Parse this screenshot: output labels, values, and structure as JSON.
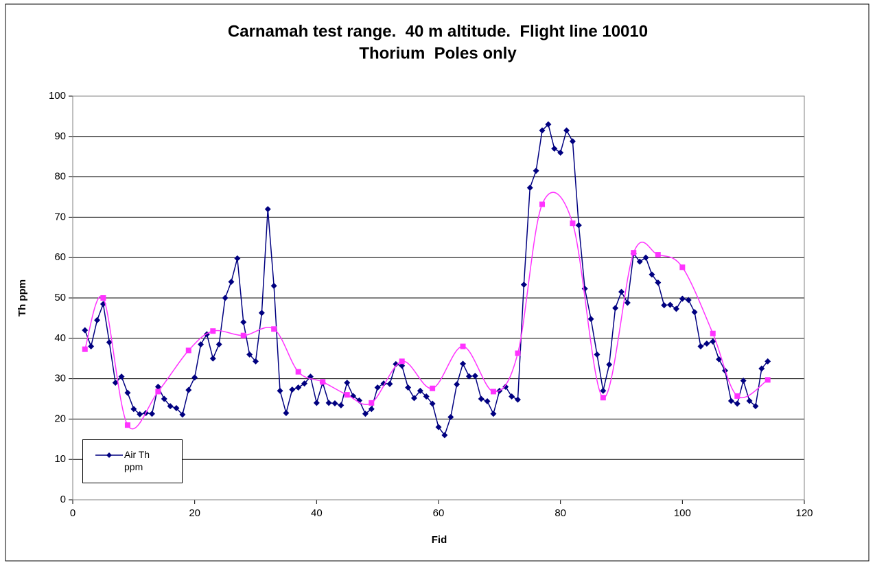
{
  "chart_data": {
    "type": "line",
    "title": "Carnamah test range.  40 m altitude.  Flight line 10010",
    "subtitle": "Thorium  Poles only",
    "x_label": "Fid",
    "y_label": "Th ppm",
    "xlim": [
      0,
      120
    ],
    "xticks": [
      0,
      20,
      40,
      60,
      80,
      100,
      120
    ],
    "ylim": [
      0,
      100
    ],
    "yticks": [
      0,
      10,
      20,
      30,
      40,
      50,
      60,
      70,
      80,
      90,
      100
    ],
    "grid": true,
    "legend": "bottom-left",
    "series": [
      {
        "name": "Air Th ppm",
        "color": "#000080",
        "marker": "diamond",
        "x": [
          2,
          3,
          4,
          5,
          6,
          7,
          8,
          9,
          10,
          11,
          12,
          13,
          14,
          15,
          16,
          17,
          18,
          19,
          20,
          21,
          22,
          23,
          24,
          25,
          26,
          27,
          28,
          29,
          30,
          31,
          32,
          33,
          34,
          35,
          36,
          37,
          38,
          39,
          40,
          41,
          42,
          43,
          44,
          45,
          46,
          47,
          48,
          49,
          50,
          51,
          52,
          53,
          54,
          55,
          56,
          57,
          58,
          59,
          60,
          61,
          62,
          63,
          64,
          65,
          66,
          67,
          68,
          69,
          70,
          71,
          72,
          73,
          74,
          75,
          76,
          77,
          78,
          79,
          80,
          81,
          82,
          83,
          84,
          85,
          86,
          87,
          88,
          89,
          90,
          91,
          92,
          93,
          94,
          95,
          96,
          97,
          98,
          99,
          100,
          101,
          102,
          103,
          104,
          105,
          106,
          107,
          108,
          109,
          110,
          111,
          112,
          113,
          114
        ],
        "values": [
          42,
          38,
          44.5,
          48.5,
          39,
          29,
          30.5,
          26.5,
          22.5,
          21.2,
          21.5,
          21.3,
          28,
          25,
          23.2,
          22.7,
          21.1,
          27.2,
          30.3,
          38.5,
          41,
          35,
          38.5,
          50,
          54,
          59.8,
          44,
          36,
          34.3,
          46.3,
          72,
          53,
          27,
          21.5,
          27.3,
          27.8,
          28.8,
          30.5,
          24,
          29,
          24,
          23.9,
          23.4,
          29,
          25.7,
          24.6,
          21.3,
          22.5,
          27.8,
          28.8,
          28.7,
          33.6,
          33.2,
          27.8,
          25.2,
          27,
          25.6,
          23.8,
          18,
          16,
          20.5,
          28.6,
          33.7,
          30.6,
          30.7,
          25,
          24.4,
          21.3,
          27,
          28,
          25.6,
          24.8,
          53.3,
          77.3,
          81.5,
          91.5,
          93,
          87,
          86,
          91.5,
          88.8,
          68,
          52.3,
          44.8,
          36,
          27,
          33.5,
          47.5,
          51.5,
          48.8,
          61,
          59,
          60,
          55.8,
          53.8,
          48.2,
          48.3,
          47.3,
          49.8,
          49.5,
          46.5,
          38,
          38.7,
          39.2,
          34.8,
          32,
          24.5,
          23.8,
          29.5,
          24.5,
          23.2,
          32.5,
          34.3
        ]
      },
      {
        "color": "#ff33ff",
        "marker": "square",
        "smooth": true,
        "x": [
          2,
          5,
          9,
          14,
          19,
          23,
          28,
          33,
          37,
          41,
          45,
          49,
          54,
          59,
          64,
          69,
          73,
          77,
          82,
          87,
          92,
          96,
          100,
          105,
          109,
          114
        ],
        "values": [
          37.3,
          50,
          18.5,
          26.8,
          37,
          41.8,
          40.7,
          42.3,
          31.7,
          29.2,
          26,
          24,
          34.3,
          27.6,
          38,
          26.8,
          36.3,
          73.2,
          68.5,
          25.3,
          61.2,
          60.7,
          57.6,
          41.2,
          25.7,
          29.7
        ]
      }
    ]
  }
}
